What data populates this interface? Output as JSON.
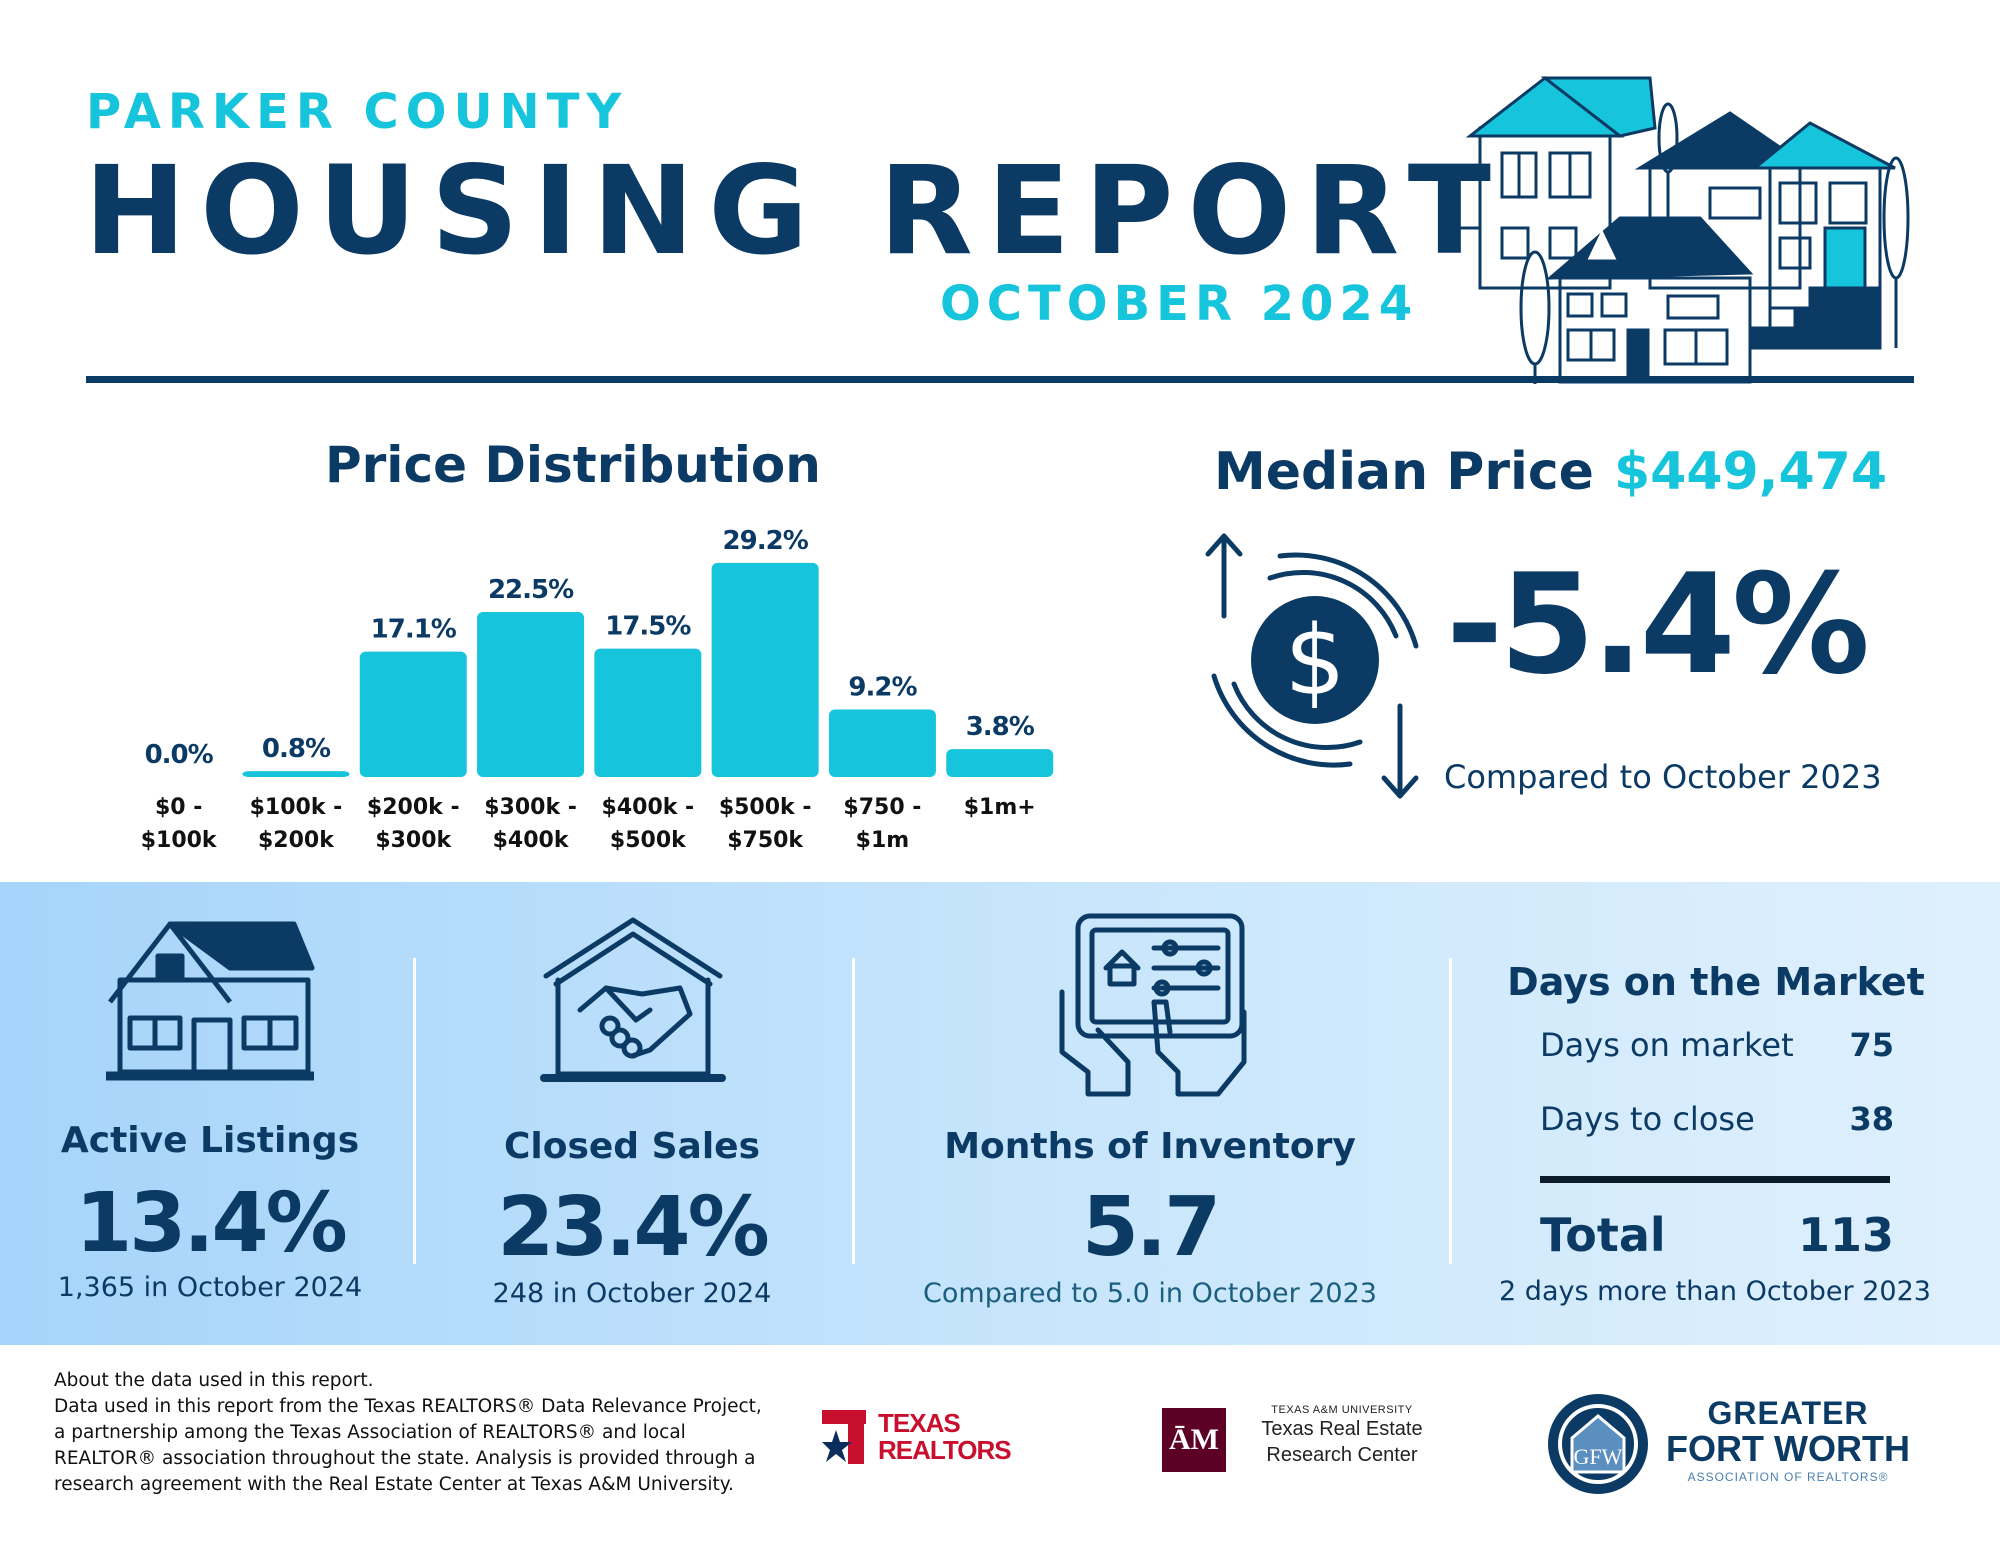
{
  "header": {
    "county": "PARKER COUNTY",
    "title": "HOUSING REPORT",
    "month": "OCTOBER 2024"
  },
  "price_distribution": {
    "title": "Price Distribution"
  },
  "chart_data": {
    "type": "bar",
    "title": "Price Distribution",
    "categories": [
      [
        "$0 -",
        "$100k"
      ],
      [
        "$100k -",
        "$200k"
      ],
      [
        "$200k -",
        "$300k"
      ],
      [
        "$300k -",
        "$400k"
      ],
      [
        "$400k -",
        "$500k"
      ],
      [
        "$500k -",
        "$750k"
      ],
      [
        "$750 -",
        "$1m"
      ],
      [
        "$1m+"
      ]
    ],
    "values": [
      0.0,
      0.8,
      17.1,
      22.5,
      17.5,
      29.2,
      9.2,
      3.8
    ],
    "value_labels": [
      "0.0%",
      "0.8%",
      "17.1%",
      "22.5%",
      "17.5%",
      "29.2%",
      "9.2%",
      "3.8%"
    ],
    "ylim": [
      0,
      30
    ],
    "grid": false,
    "bar_color": "#16c4dc"
  },
  "median": {
    "label": "Median Price",
    "value": "$449,474",
    "change": "-5.4%",
    "compare": "Compared to October 2023"
  },
  "stats": {
    "active": {
      "title": "Active Listings",
      "value": "13.4%",
      "sub": "1,365 in October 2024",
      "icon": "house-icon"
    },
    "closed": {
      "title": "Closed Sales",
      "value": "23.4%",
      "sub": "248 in October 2024",
      "icon": "handshake-house-icon"
    },
    "inventory": {
      "title": "Months of Inventory",
      "value": "5.7",
      "sub": "Compared to 5.0 in October 2023",
      "icon": "tablet-listing-icon"
    }
  },
  "days_on_market": {
    "title": "Days on the Market",
    "rows": [
      {
        "label": "Days on market",
        "value": "75"
      },
      {
        "label": "Days to close",
        "value": "38"
      }
    ],
    "total_label": "Total",
    "total_value": "113",
    "note": "2 days more than October 2023"
  },
  "footer": {
    "about_heading": "About the data used in this report.",
    "about_body": "Data used in this report from the Texas REALTORS® Data Relevance Project, a partnership among the Texas Association of REALTORS® and local REALTOR® association throughout the state. Analysis is provided through a research agreement with the Real Estate Center at Texas A&M University.",
    "logos": {
      "texas_realtors": {
        "line1": "TEXAS",
        "line2": "REALTORS"
      },
      "tamu": {
        "small": "TEXAS A&M UNIVERSITY",
        "line1": "Texas Real Estate",
        "line2": "Research Center"
      },
      "gfw": {
        "line1": "GREATER",
        "line2": "FORT WORTH",
        "line3": "ASSOCIATION OF REALTORS®"
      }
    }
  },
  "colors": {
    "navy": "#0b3a64",
    "cyan": "#16c4dc",
    "band_start": "#a6d4fa",
    "band_end": "#dff0fd"
  }
}
